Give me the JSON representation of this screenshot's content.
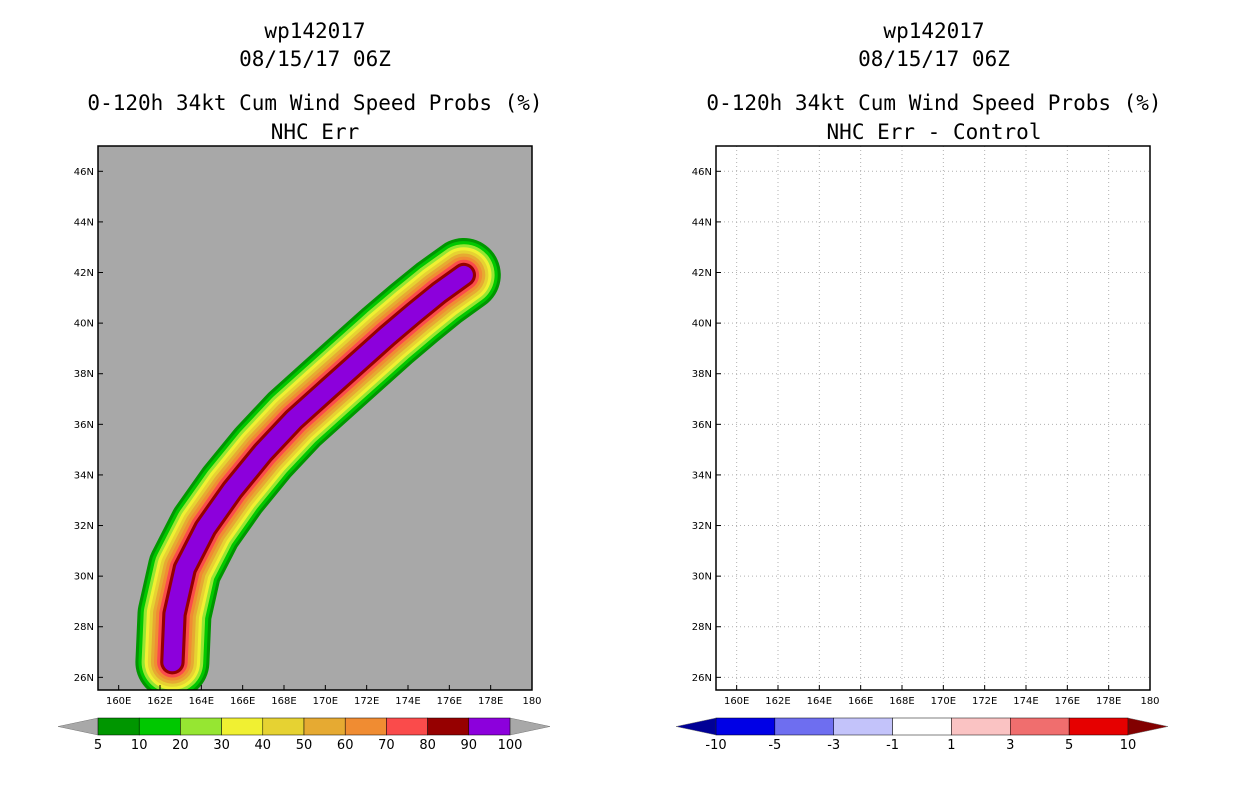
{
  "chart_data": [
    {
      "type": "heatmap",
      "storm_id": "wp142017",
      "datetime": "08/15/17 06Z",
      "title": "0-120h 34kt Cum Wind Speed Probs (%)",
      "subtitle": "NHC Err",
      "xlim": [
        159,
        180
      ],
      "ylim": [
        25.5,
        47
      ],
      "x_ticks": [
        "160E",
        "162E",
        "164E",
        "166E",
        "168E",
        "170E",
        "172E",
        "174E",
        "176E",
        "178E",
        "180"
      ],
      "y_ticks": [
        "26N",
        "28N",
        "30N",
        "32N",
        "34N",
        "36N",
        "38N",
        "40N",
        "42N",
        "44N",
        "46N"
      ],
      "background": "#a8a8a8",
      "track_ridge": [
        [
          162.6,
          26.6
        ],
        [
          162.7,
          28.5
        ],
        [
          163.2,
          30.3
        ],
        [
          164.2,
          31.9
        ],
        [
          165.5,
          33.4
        ],
        [
          167.0,
          34.9
        ],
        [
          168.5,
          36.2
        ],
        [
          170.0,
          37.3
        ],
        [
          171.5,
          38.4
        ],
        [
          173.0,
          39.5
        ],
        [
          174.3,
          40.4
        ],
        [
          175.5,
          41.2
        ],
        [
          176.7,
          41.9
        ]
      ],
      "contours": [
        {
          "level": 5,
          "color": "#009600"
        },
        {
          "level": 10,
          "color": "#00c800"
        },
        {
          "level": 20,
          "color": "#96e632"
        },
        {
          "level": 30,
          "color": "#f0f032"
        },
        {
          "level": 40,
          "color": "#e6d232"
        },
        {
          "level": 50,
          "color": "#e6aa32"
        },
        {
          "level": 60,
          "color": "#f08c32"
        },
        {
          "level": 70,
          "color": "#fa4b4b"
        },
        {
          "level": 80,
          "color": "#960000"
        },
        {
          "level": 90,
          "color": "#8c00dc"
        }
      ],
      "colorbar": {
        "labels": [
          "5",
          "10",
          "20",
          "30",
          "40",
          "50",
          "60",
          "70",
          "80",
          "90",
          "100"
        ],
        "colors": [
          "#009600",
          "#00c800",
          "#96e632",
          "#f0f032",
          "#e6d232",
          "#e6aa32",
          "#f08c32",
          "#fa4b4b",
          "#960000",
          "#8c00dc"
        ],
        "low_arrow": "#a8a8a8",
        "high_arrow": "#a8a8a8"
      }
    },
    {
      "type": "heatmap",
      "storm_id": "wp142017",
      "datetime": "08/15/17 06Z",
      "title": "0-120h 34kt Cum Wind Speed Probs (%)",
      "subtitle": "NHC Err - Control",
      "xlim": [
        159,
        180
      ],
      "ylim": [
        25.5,
        47
      ],
      "x_ticks": [
        "160E",
        "162E",
        "164E",
        "166E",
        "168E",
        "170E",
        "172E",
        "174E",
        "176E",
        "178E",
        "180"
      ],
      "y_ticks": [
        "26N",
        "28N",
        "30N",
        "32N",
        "34N",
        "36N",
        "38N",
        "40N",
        "42N",
        "44N",
        "46N"
      ],
      "background": "#ffffff",
      "grid": true,
      "colorbar": {
        "labels": [
          "-10",
          "-5",
          "-3",
          "-1",
          "1",
          "3",
          "5",
          "10"
        ],
        "colors": [
          "#0000e6",
          "#6e6ef0",
          "#c3c3fa",
          "#ffffff",
          "#fac3c3",
          "#f06e6e",
          "#e60000"
        ],
        "low_arrow": "#000096",
        "high_arrow": "#820000"
      }
    }
  ]
}
